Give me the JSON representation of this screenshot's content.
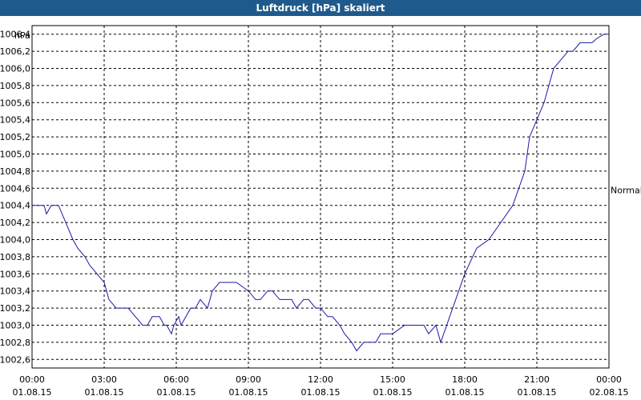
{
  "chart_data": {
    "type": "line",
    "title": "Luftdruck [hPa] skaliert",
    "unit_label": "hPa",
    "right_label": "Normal",
    "right_label_value": 1004.6,
    "ylim": [
      1002.5,
      1006.5
    ],
    "yticks": [
      1002.6,
      1002.8,
      1003.0,
      1003.2,
      1003.4,
      1003.6,
      1003.8,
      1004.0,
      1004.2,
      1004.4,
      1004.6,
      1004.8,
      1005.0,
      1005.2,
      1005.4,
      1005.6,
      1005.8,
      1006.0,
      1006.2,
      1006.4
    ],
    "ytick_labels": [
      "1002,6",
      "1002,8",
      "1003,0",
      "1003,2",
      "1003,4",
      "1003,6",
      "1003,8",
      "1004,0",
      "1004,2",
      "1004,4",
      "1004,6",
      "1004,8",
      "1005,0",
      "1005,2",
      "1005,4",
      "1005,6",
      "1005,8",
      "1006,0",
      "1006,2",
      "1006,4"
    ],
    "xlim_hours": [
      0,
      24
    ],
    "xticks": [
      {
        "hour": 0,
        "time": "00:00",
        "date": "01.08.15"
      },
      {
        "hour": 3,
        "time": "03:00",
        "date": "01.08.15"
      },
      {
        "hour": 6,
        "time": "06:00",
        "date": "01.08.15"
      },
      {
        "hour": 9,
        "time": "09:00",
        "date": "01.08.15"
      },
      {
        "hour": 12,
        "time": "12:00",
        "date": "01.08.15"
      },
      {
        "hour": 15,
        "time": "15:00",
        "date": "01.08.15"
      },
      {
        "hour": 18,
        "time": "18:00",
        "date": "01.08.15"
      },
      {
        "hour": 21,
        "time": "21:00",
        "date": "01.08.15"
      },
      {
        "hour": 24,
        "time": "00:00",
        "date": "02.08.15"
      }
    ],
    "grid": true,
    "line_color": "#1a1aa8",
    "series": [
      {
        "x": [
          0.0,
          0.5,
          0.6,
          0.8,
          1.1,
          1.4,
          1.7,
          1.9,
          2.2,
          2.4,
          2.7,
          3.0,
          3.2,
          3.5,
          3.7,
          4.0,
          4.3,
          4.6,
          4.8,
          5.0,
          5.3,
          5.5,
          5.6,
          5.8,
          5.9,
          6.1,
          6.2,
          6.4,
          6.6,
          6.8,
          7.0,
          7.3,
          7.5,
          7.8,
          8.0,
          8.3,
          8.5,
          9.0,
          9.3,
          9.5,
          9.8,
          10.0,
          10.3,
          10.5,
          10.8,
          11.0,
          11.3,
          11.5,
          11.8,
          12.0,
          12.3,
          12.5,
          12.8,
          13.0,
          13.3,
          13.5,
          13.8,
          14.0,
          14.3,
          14.5,
          15.0,
          15.5,
          16.0,
          16.3,
          16.5,
          16.8,
          17.0,
          17.5,
          18.0,
          18.5,
          19.0,
          19.5,
          20.0,
          20.5,
          20.7,
          21.0,
          21.3,
          21.5,
          21.7,
          22.0,
          22.3,
          22.5,
          22.8,
          23.0,
          23.3,
          23.5,
          23.8,
          24.0
        ],
        "y": [
          1004.4,
          1004.4,
          1004.3,
          1004.4,
          1004.4,
          1004.2,
          1004.0,
          1003.9,
          1003.8,
          1003.7,
          1003.6,
          1003.5,
          1003.3,
          1003.2,
          1003.2,
          1003.2,
          1003.1,
          1003.0,
          1003.0,
          1003.1,
          1003.1,
          1003.0,
          1003.0,
          1002.9,
          1003.0,
          1003.1,
          1003.0,
          1003.1,
          1003.2,
          1003.2,
          1003.3,
          1003.2,
          1003.4,
          1003.5,
          1003.5,
          1003.5,
          1003.5,
          1003.4,
          1003.3,
          1003.3,
          1003.4,
          1003.4,
          1003.3,
          1003.3,
          1003.3,
          1003.2,
          1003.3,
          1003.3,
          1003.2,
          1003.2,
          1003.1,
          1003.1,
          1003.0,
          1002.9,
          1002.8,
          1002.7,
          1002.8,
          1002.8,
          1002.8,
          1002.9,
          1002.9,
          1003.0,
          1003.0,
          1003.0,
          1002.9,
          1003.0,
          1002.8,
          1003.2,
          1003.6,
          1003.9,
          1004.0,
          1004.2,
          1004.4,
          1004.8,
          1005.2,
          1005.4,
          1005.6,
          1005.8,
          1006.0,
          1006.1,
          1006.2,
          1006.2,
          1006.3,
          1006.3,
          1006.3,
          1006.35,
          1006.4,
          1006.4
        ]
      }
    ]
  }
}
